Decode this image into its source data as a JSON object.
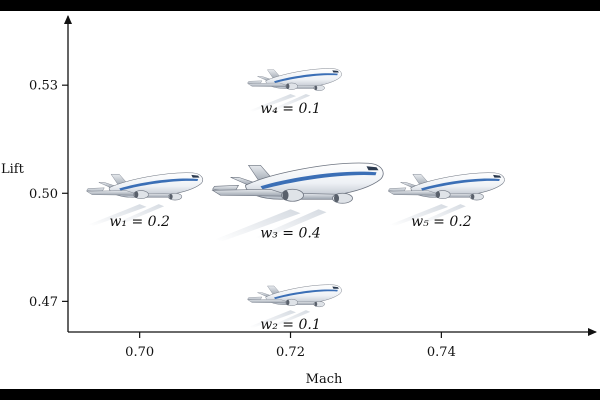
{
  "chart_data": {
    "type": "scatter",
    "xlabel": "Mach",
    "ylabel": "Lift",
    "xticks": [
      "0.70",
      "0.72",
      "0.74"
    ],
    "yticks": [
      "0.53",
      "0.50",
      "0.47"
    ],
    "xlim": [
      0.6905,
      0.7605
    ],
    "ylim": [
      0.4615,
      0.5492
    ],
    "points": [
      {
        "label": "w₁ = 0.2",
        "x": 0.7,
        "y": 0.5,
        "weight": 0.2,
        "scale": 0.68
      },
      {
        "label": "w₂ = 0.1",
        "x": 0.72,
        "y": 0.47,
        "weight": 0.1,
        "scale": 0.55
      },
      {
        "label": "w₃ = 0.4",
        "x": 0.72,
        "y": 0.5,
        "weight": 0.4,
        "scale": 1.0
      },
      {
        "label": "w₄ = 0.1",
        "x": 0.72,
        "y": 0.53,
        "weight": 0.1,
        "scale": 0.55
      },
      {
        "label": "w₅ = 0.2",
        "x": 0.74,
        "y": 0.5,
        "weight": 0.2,
        "scale": 0.68
      }
    ],
    "point_icon": "airplane-icon",
    "colors": {
      "fuselage": "#f4f6f8",
      "stripe": "#3b6fb6",
      "wing": "#c9ced6",
      "outline": "#6d7480"
    }
  }
}
